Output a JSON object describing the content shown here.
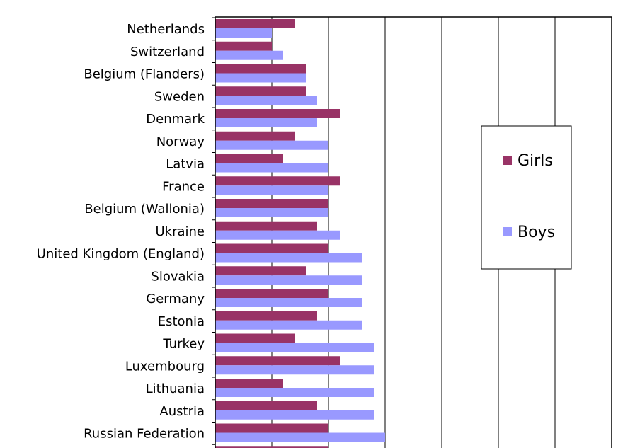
{
  "chart_data": {
    "type": "bar",
    "orientation": "horizontal",
    "categories": [
      "Netherlands",
      "Switzerland",
      "Belgium (Flanders)",
      "Sweden",
      "Denmark",
      "Norway",
      "Latvia",
      "France",
      "Belgium (Wallonia)",
      "Ukraine",
      "United Kingdom (England)",
      "Slovakia",
      "Germany",
      "Estonia",
      "Turkey",
      "Luxembourg",
      "Lithuania",
      "Austria",
      "Russian Federation"
    ],
    "series": [
      {
        "name": "Girls",
        "color": "#993366",
        "values": [
          7,
          5,
          8,
          8,
          11,
          7,
          6,
          11,
          10,
          9,
          10,
          8,
          10,
          9,
          7,
          11,
          6,
          9,
          10
        ]
      },
      {
        "name": "Boys",
        "color": "#9999ff",
        "values": [
          5,
          6,
          8,
          9,
          9,
          10,
          10,
          10,
          10,
          11,
          13,
          13,
          13,
          13,
          14,
          14,
          14,
          14,
          15
        ]
      }
    ],
    "xlim": [
      0,
      35
    ],
    "x_gridline_step": 5,
    "grid": true,
    "title": "",
    "xlabel": "",
    "ylabel": "",
    "legend": {
      "placement": "right",
      "entries": [
        "Girls",
        "Boys"
      ]
    }
  }
}
